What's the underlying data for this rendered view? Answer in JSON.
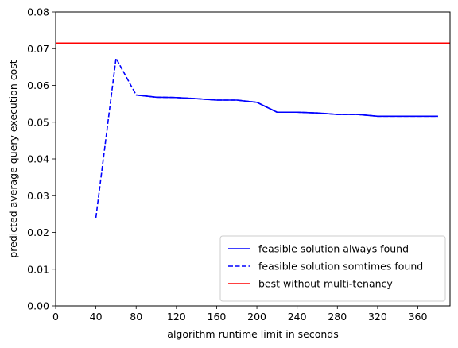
{
  "chart_data": {
    "type": "line",
    "title": "",
    "xlabel": "algorithm runtime limit in seconds",
    "ylabel": "predicted average query execution cost",
    "xlim": [
      0,
      392
    ],
    "ylim": [
      0,
      0.08
    ],
    "xticks": [
      "0",
      "40",
      "80",
      "120",
      "160",
      "200",
      "240",
      "280",
      "320",
      "360"
    ],
    "yticks": [
      "0.00",
      "0.01",
      "0.02",
      "0.03",
      "0.04",
      "0.05",
      "0.06",
      "0.07",
      "0.08"
    ],
    "grid": false,
    "legend_position": "lower right",
    "series": [
      {
        "name": "feasible solution always found",
        "style": "solid",
        "color": "#0000ff",
        "x": [
          80,
          100,
          120,
          140,
          160,
          180,
          200,
          220,
          240,
          260,
          280,
          300,
          320,
          340,
          360,
          380
        ],
        "y": [
          0.0574,
          0.0568,
          0.0567,
          0.0564,
          0.056,
          0.056,
          0.0554,
          0.0527,
          0.0527,
          0.0525,
          0.0521,
          0.0521,
          0.0516,
          0.0516,
          0.0516,
          0.0516
        ]
      },
      {
        "name": "feasible solution somtimes found",
        "style": "dashed",
        "color": "#0000ff",
        "x": [
          40,
          60,
          80,
          100,
          120,
          140,
          160,
          180,
          200,
          220,
          240,
          260,
          280,
          300,
          320,
          340,
          360,
          380
        ],
        "y": [
          0.024,
          0.0674,
          0.0574,
          0.0568,
          0.0567,
          0.0564,
          0.056,
          0.056,
          0.0554,
          0.0527,
          0.0527,
          0.0525,
          0.0521,
          0.0521,
          0.0516,
          0.0516,
          0.0516,
          0.0516
        ]
      },
      {
        "name": "best without multi-tenancy",
        "style": "solid",
        "color": "#ff0000",
        "type": "hline",
        "y": 0.0715
      }
    ]
  }
}
